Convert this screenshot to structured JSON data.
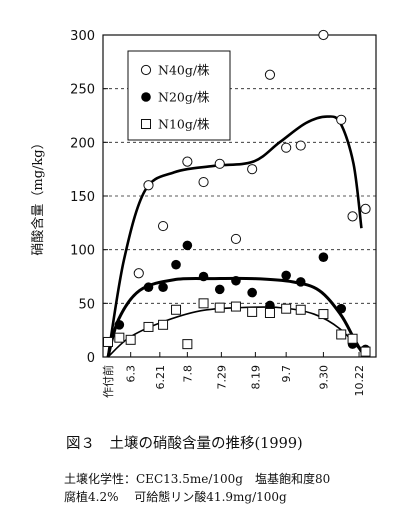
{
  "chart_data": {
    "type": "scatter",
    "title": "",
    "ylabel": "硝酸含量（mg/kg）",
    "xlabel": "",
    "ylim": [
      0,
      300
    ],
    "yticks": [
      "0",
      "50",
      "100",
      "150",
      "200",
      "250",
      "300"
    ],
    "categories": [
      "作付前",
      "6.3",
      "6.21",
      "7.8",
      "7.29",
      "8.19",
      "9.7",
      "9.30",
      "10.22"
    ],
    "grid": "dashed horizontal",
    "legend_position": "top-left",
    "series": [
      {
        "name": "N40g/株",
        "marker": "open-circle",
        "points": [
          {
            "x": "6.14",
            "y": 160
          },
          {
            "x": "6.23",
            "y": 122
          },
          {
            "x": "6.08",
            "y": 78
          },
          {
            "x": "7.08",
            "y": 182
          },
          {
            "x": "7.18",
            "y": 163
          },
          {
            "x": "7.28",
            "y": 180
          },
          {
            "x": "8.17",
            "y": 175
          },
          {
            "x": "8.07",
            "y": 110
          },
          {
            "x": "8.28",
            "y": 263
          },
          {
            "x": "9.07",
            "y": 195
          },
          {
            "x": "9.16",
            "y": 197
          },
          {
            "x": "9.30",
            "y": 300
          },
          {
            "x": "10.11",
            "y": 221
          },
          {
            "x": "10.18",
            "y": 131
          },
          {
            "x": "10.26",
            "y": 138
          }
        ],
        "trend": [
          [
            0,
            0
          ],
          [
            6,
            90
          ],
          [
            14,
            155
          ],
          [
            25,
            172
          ],
          [
            40,
            178
          ],
          [
            55,
            182
          ],
          [
            65,
            200
          ],
          [
            75,
            218
          ],
          [
            83,
            224
          ],
          [
            88,
            218
          ],
          [
            93,
            180
          ],
          [
            96,
            120
          ]
        ]
      },
      {
        "name": "N20g/株",
        "marker": "filled-circle",
        "points": [
          {
            "x": "5.27",
            "y": 30
          },
          {
            "x": "6.14",
            "y": 65
          },
          {
            "x": "6.23",
            "y": 65
          },
          {
            "x": "7.01",
            "y": 86
          },
          {
            "x": "7.08",
            "y": 104
          },
          {
            "x": "7.18",
            "y": 75
          },
          {
            "x": "7.28",
            "y": 63
          },
          {
            "x": "8.07",
            "y": 71
          },
          {
            "x": "8.17",
            "y": 60
          },
          {
            "x": "8.28",
            "y": 48
          },
          {
            "x": "9.07",
            "y": 76
          },
          {
            "x": "9.16",
            "y": 70
          },
          {
            "x": "9.30",
            "y": 93
          },
          {
            "x": "10.11",
            "y": 45
          },
          {
            "x": "10.18",
            "y": 12
          },
          {
            "x": "10.26",
            "y": 7
          }
        ],
        "trend": [
          [
            0,
            0
          ],
          [
            4,
            35
          ],
          [
            12,
            62
          ],
          [
            25,
            72
          ],
          [
            40,
            73
          ],
          [
            55,
            73
          ],
          [
            70,
            70
          ],
          [
            80,
            62
          ],
          [
            88,
            40
          ],
          [
            93,
            18
          ],
          [
            96,
            5
          ]
        ]
      },
      {
        "name": "N10g/株",
        "marker": "open-square",
        "points": [
          {
            "x": "作付前",
            "y": 14
          },
          {
            "x": "5.27",
            "y": 18
          },
          {
            "x": "6.03",
            "y": 16
          },
          {
            "x": "6.14",
            "y": 28
          },
          {
            "x": "6.23",
            "y": 30
          },
          {
            "x": "7.01",
            "y": 44
          },
          {
            "x": "7.08",
            "y": 12
          },
          {
            "x": "7.18",
            "y": 50
          },
          {
            "x": "7.28",
            "y": 46
          },
          {
            "x": "8.07",
            "y": 47
          },
          {
            "x": "8.17",
            "y": 42
          },
          {
            "x": "8.28",
            "y": 41
          },
          {
            "x": "9.07",
            "y": 45
          },
          {
            "x": "9.16",
            "y": 44
          },
          {
            "x": "9.30",
            "y": 40
          },
          {
            "x": "10.11",
            "y": 21
          },
          {
            "x": "10.18",
            "y": 17
          },
          {
            "x": "10.26",
            "y": 5
          }
        ],
        "trend": [
          [
            0,
            0
          ],
          [
            8,
            18
          ],
          [
            20,
            32
          ],
          [
            35,
            43
          ],
          [
            50,
            46
          ],
          [
            65,
            46
          ],
          [
            78,
            40
          ],
          [
            88,
            26
          ],
          [
            96,
            5
          ]
        ]
      }
    ]
  },
  "caption": "図３　土壌の硝酸含量の推移(1999)",
  "notes": [
    "土壌化学性：CEC13.5me/100g　塩基飽和度80",
    "腐植4.2%　 可給態リン酸41.9mg/100g"
  ]
}
